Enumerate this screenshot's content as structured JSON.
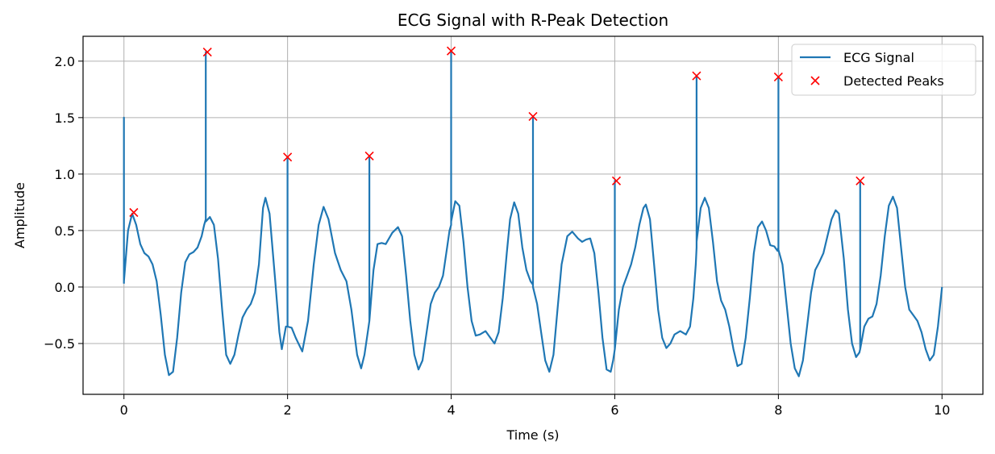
{
  "chart_data": {
    "type": "line",
    "title": "ECG Signal with R-Peak Detection",
    "xlabel": "Time (s)",
    "ylabel": "Amplitude",
    "xlim": [
      -0.5,
      10.5
    ],
    "ylim": [
      -0.95,
      2.22
    ],
    "xticks": [
      0,
      2,
      4,
      6,
      8,
      10
    ],
    "xtick_labels": [
      "0",
      "2",
      "4",
      "6",
      "8",
      "10"
    ],
    "yticks": [
      -0.5,
      0.0,
      0.5,
      1.0,
      1.5,
      2.0
    ],
    "ytick_labels": [
      "−0.5",
      "0.0",
      "0.5",
      "1.0",
      "1.5",
      "2.0"
    ],
    "grid": true,
    "legend_position": "top-right",
    "series": [
      {
        "name": "ECG Signal",
        "style": "line",
        "color": "#1f77b4",
        "points": [
          [
            0.0,
            0.03
          ],
          [
            0.0,
            1.5
          ],
          [
            0.0,
            0.05
          ],
          [
            0.05,
            0.5
          ],
          [
            0.1,
            0.65
          ],
          [
            0.15,
            0.55
          ],
          [
            0.2,
            0.38
          ],
          [
            0.25,
            0.3
          ],
          [
            0.3,
            0.27
          ],
          [
            0.35,
            0.2
          ],
          [
            0.4,
            0.05
          ],
          [
            0.45,
            -0.25
          ],
          [
            0.5,
            -0.6
          ],
          [
            0.55,
            -0.78
          ],
          [
            0.6,
            -0.75
          ],
          [
            0.65,
            -0.45
          ],
          [
            0.7,
            -0.05
          ],
          [
            0.75,
            0.22
          ],
          [
            0.8,
            0.29
          ],
          [
            0.85,
            0.31
          ],
          [
            0.9,
            0.35
          ],
          [
            0.95,
            0.45
          ],
          [
            0.98,
            0.55
          ],
          [
            1.0,
            0.6
          ],
          [
            1.0,
            2.08
          ],
          [
            1.0,
            0.58
          ],
          [
            1.05,
            0.62
          ],
          [
            1.1,
            0.55
          ],
          [
            1.15,
            0.25
          ],
          [
            1.2,
            -0.2
          ],
          [
            1.25,
            -0.6
          ],
          [
            1.3,
            -0.68
          ],
          [
            1.35,
            -0.6
          ],
          [
            1.4,
            -0.42
          ],
          [
            1.45,
            -0.27
          ],
          [
            1.5,
            -0.2
          ],
          [
            1.55,
            -0.15
          ],
          [
            1.6,
            -0.05
          ],
          [
            1.65,
            0.2
          ],
          [
            1.7,
            0.7
          ],
          [
            1.73,
            0.79
          ],
          [
            1.78,
            0.65
          ],
          [
            1.85,
            0.05
          ],
          [
            1.9,
            -0.4
          ],
          [
            1.93,
            -0.55
          ],
          [
            1.98,
            -0.35
          ],
          [
            2.0,
            -0.35
          ],
          [
            2.0,
            1.15
          ],
          [
            2.0,
            -0.35
          ],
          [
            2.05,
            -0.36
          ],
          [
            2.1,
            -0.45
          ],
          [
            2.18,
            -0.57
          ],
          [
            2.25,
            -0.3
          ],
          [
            2.32,
            0.2
          ],
          [
            2.38,
            0.55
          ],
          [
            2.44,
            0.71
          ],
          [
            2.5,
            0.6
          ],
          [
            2.58,
            0.3
          ],
          [
            2.65,
            0.15
          ],
          [
            2.72,
            0.05
          ],
          [
            2.78,
            -0.2
          ],
          [
            2.85,
            -0.6
          ],
          [
            2.9,
            -0.72
          ],
          [
            2.94,
            -0.6
          ],
          [
            2.98,
            -0.4
          ],
          [
            3.0,
            -0.3
          ],
          [
            3.0,
            1.15
          ],
          [
            3.0,
            -0.3
          ],
          [
            3.05,
            0.15
          ],
          [
            3.1,
            0.38
          ],
          [
            3.15,
            0.39
          ],
          [
            3.2,
            0.38
          ],
          [
            3.28,
            0.48
          ],
          [
            3.35,
            0.53
          ],
          [
            3.4,
            0.45
          ],
          [
            3.45,
            0.1
          ],
          [
            3.5,
            -0.3
          ],
          [
            3.55,
            -0.6
          ],
          [
            3.6,
            -0.73
          ],
          [
            3.65,
            -0.65
          ],
          [
            3.7,
            -0.4
          ],
          [
            3.75,
            -0.15
          ],
          [
            3.8,
            -0.05
          ],
          [
            3.85,
            0.0
          ],
          [
            3.9,
            0.1
          ],
          [
            3.95,
            0.35
          ],
          [
            3.98,
            0.5
          ],
          [
            4.0,
            0.55
          ],
          [
            4.0,
            2.08
          ],
          [
            4.0,
            0.58
          ],
          [
            4.05,
            0.76
          ],
          [
            4.1,
            0.72
          ],
          [
            4.15,
            0.4
          ],
          [
            4.2,
            0.0
          ],
          [
            4.25,
            -0.3
          ],
          [
            4.3,
            -0.43
          ],
          [
            4.35,
            -0.42
          ],
          [
            4.42,
            -0.39
          ],
          [
            4.48,
            -0.45
          ],
          [
            4.53,
            -0.5
          ],
          [
            4.58,
            -0.4
          ],
          [
            4.63,
            -0.1
          ],
          [
            4.68,
            0.3
          ],
          [
            4.72,
            0.6
          ],
          [
            4.77,
            0.75
          ],
          [
            4.82,
            0.65
          ],
          [
            4.87,
            0.35
          ],
          [
            4.92,
            0.15
          ],
          [
            4.97,
            0.05
          ],
          [
            5.0,
            0.02
          ],
          [
            5.0,
            1.5
          ],
          [
            5.0,
            0.0
          ],
          [
            5.05,
            -0.15
          ],
          [
            5.1,
            -0.4
          ],
          [
            5.15,
            -0.65
          ],
          [
            5.2,
            -0.75
          ],
          [
            5.25,
            -0.6
          ],
          [
            5.3,
            -0.2
          ],
          [
            5.35,
            0.2
          ],
          [
            5.42,
            0.45
          ],
          [
            5.48,
            0.49
          ],
          [
            5.55,
            0.43
          ],
          [
            5.6,
            0.4
          ],
          [
            5.65,
            0.42
          ],
          [
            5.7,
            0.43
          ],
          [
            5.75,
            0.3
          ],
          [
            5.8,
            -0.05
          ],
          [
            5.85,
            -0.45
          ],
          [
            5.9,
            -0.73
          ],
          [
            5.95,
            -0.75
          ],
          [
            5.98,
            -0.65
          ],
          [
            6.0,
            -0.55
          ],
          [
            6.0,
            0.94
          ],
          [
            6.0,
            -0.55
          ],
          [
            6.05,
            -0.2
          ],
          [
            6.1,
            0.0
          ],
          [
            6.15,
            0.1
          ],
          [
            6.2,
            0.2
          ],
          [
            6.25,
            0.35
          ],
          [
            6.3,
            0.55
          ],
          [
            6.35,
            0.7
          ],
          [
            6.38,
            0.73
          ],
          [
            6.43,
            0.6
          ],
          [
            6.48,
            0.2
          ],
          [
            6.53,
            -0.2
          ],
          [
            6.58,
            -0.45
          ],
          [
            6.63,
            -0.54
          ],
          [
            6.68,
            -0.5
          ],
          [
            6.73,
            -0.42
          ],
          [
            6.8,
            -0.39
          ],
          [
            6.87,
            -0.42
          ],
          [
            6.92,
            -0.35
          ],
          [
            6.96,
            -0.1
          ],
          [
            6.99,
            0.2
          ],
          [
            7.0,
            0.35
          ],
          [
            7.0,
            1.87
          ],
          [
            7.0,
            0.4
          ],
          [
            7.05,
            0.7
          ],
          [
            7.1,
            0.79
          ],
          [
            7.15,
            0.7
          ],
          [
            7.2,
            0.4
          ],
          [
            7.25,
            0.05
          ],
          [
            7.3,
            -0.12
          ],
          [
            7.35,
            -0.2
          ],
          [
            7.4,
            -0.35
          ],
          [
            7.45,
            -0.55
          ],
          [
            7.5,
            -0.7
          ],
          [
            7.55,
            -0.68
          ],
          [
            7.6,
            -0.45
          ],
          [
            7.65,
            -0.1
          ],
          [
            7.7,
            0.3
          ],
          [
            7.75,
            0.53
          ],
          [
            7.8,
            0.58
          ],
          [
            7.85,
            0.5
          ],
          [
            7.9,
            0.37
          ],
          [
            7.95,
            0.36
          ],
          [
            7.99,
            0.32
          ],
          [
            8.0,
            0.35
          ],
          [
            8.0,
            1.85
          ],
          [
            8.0,
            0.33
          ],
          [
            8.05,
            0.2
          ],
          [
            8.1,
            -0.15
          ],
          [
            8.15,
            -0.5
          ],
          [
            8.2,
            -0.72
          ],
          [
            8.25,
            -0.79
          ],
          [
            8.3,
            -0.65
          ],
          [
            8.35,
            -0.35
          ],
          [
            8.4,
            -0.05
          ],
          [
            8.45,
            0.15
          ],
          [
            8.5,
            0.22
          ],
          [
            8.55,
            0.3
          ],
          [
            8.6,
            0.45
          ],
          [
            8.65,
            0.6
          ],
          [
            8.7,
            0.68
          ],
          [
            8.74,
            0.65
          ],
          [
            8.8,
            0.25
          ],
          [
            8.85,
            -0.2
          ],
          [
            8.9,
            -0.5
          ],
          [
            8.95,
            -0.62
          ],
          [
            8.99,
            -0.58
          ],
          [
            9.0,
            -0.55
          ],
          [
            9.0,
            0.94
          ],
          [
            9.0,
            -0.55
          ],
          [
            9.05,
            -0.35
          ],
          [
            9.1,
            -0.28
          ],
          [
            9.15,
            -0.26
          ],
          [
            9.2,
            -0.15
          ],
          [
            9.25,
            0.1
          ],
          [
            9.3,
            0.45
          ],
          [
            9.35,
            0.72
          ],
          [
            9.4,
            0.8
          ],
          [
            9.45,
            0.7
          ],
          [
            9.5,
            0.35
          ],
          [
            9.55,
            0.0
          ],
          [
            9.6,
            -0.2
          ],
          [
            9.65,
            -0.25
          ],
          [
            9.7,
            -0.3
          ],
          [
            9.75,
            -0.4
          ],
          [
            9.8,
            -0.55
          ],
          [
            9.85,
            -0.65
          ],
          [
            9.9,
            -0.6
          ],
          [
            9.95,
            -0.35
          ],
          [
            10.0,
            0.0
          ]
        ]
      },
      {
        "name": "Detected Peaks",
        "style": "marker-x",
        "color": "#ff0000",
        "points": [
          [
            0.12,
            0.66
          ],
          [
            1.02,
            2.08
          ],
          [
            2.0,
            1.15
          ],
          [
            3.0,
            1.16
          ],
          [
            4.0,
            2.09
          ],
          [
            5.0,
            1.51
          ],
          [
            6.02,
            0.94
          ],
          [
            7.0,
            1.87
          ],
          [
            8.0,
            1.86
          ],
          [
            9.0,
            0.94
          ]
        ]
      }
    ]
  }
}
